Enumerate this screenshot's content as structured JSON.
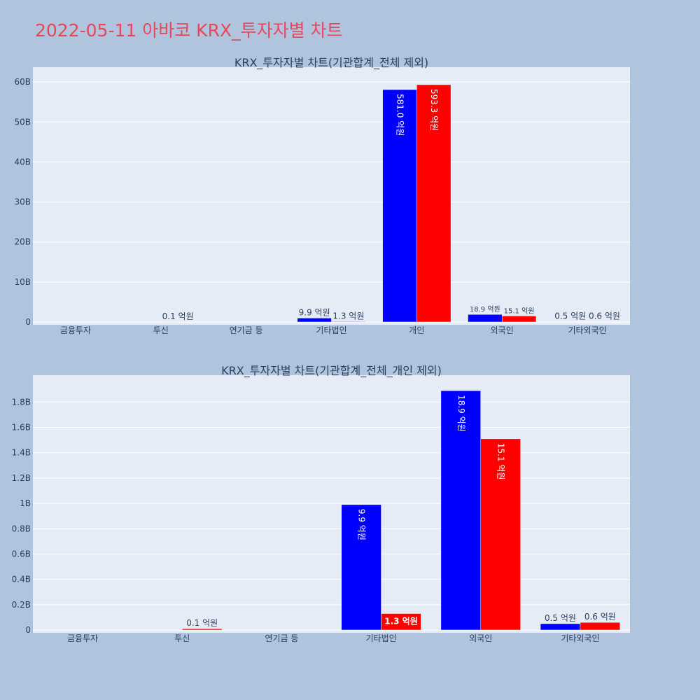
{
  "page": {
    "title": "2022-05-11 아바코 KRX_투자자별 차트"
  },
  "chart_data": [
    {
      "type": "bar",
      "title": "KRX_투자자별 차트(기관합계_전체 제외)",
      "categories": [
        "금융투자",
        "투신",
        "연기금 등",
        "기타법인",
        "개인",
        "외국인",
        "기타외국인"
      ],
      "series": [
        {
          "color": "#0000ff",
          "values": [
            0,
            0,
            0,
            0.99,
            58.1,
            1.89,
            0.05
          ],
          "labels": [
            "",
            "",
            "",
            "9.9 억원",
            "581.0 억원",
            "18.9 억원",
            "0.5 억원"
          ]
        },
        {
          "color": "#ff0000",
          "values": [
            0,
            0.01,
            0,
            0.13,
            59.33,
            1.51,
            0.06
          ],
          "labels": [
            "",
            "0.1 억원",
            "",
            "1.3 억원",
            "593.3 억원",
            "15.1 억원",
            "0.6 억원"
          ]
        }
      ],
      "ylim": [
        0,
        63
      ],
      "yticks": [
        0,
        10,
        20,
        30,
        40,
        50,
        60
      ],
      "ytick_labels": [
        "0",
        "10B",
        "20B",
        "30B",
        "40B",
        "50B",
        "60B"
      ],
      "grid": true,
      "legend": "none"
    },
    {
      "type": "bar",
      "title": "KRX_투자자별 차트(기관합계_전체_개인 제외)",
      "categories": [
        "금융투자",
        "투신",
        "연기금 등",
        "기타법인",
        "외국인",
        "기타외국인"
      ],
      "series": [
        {
          "color": "#0000ff",
          "values": [
            0,
            0,
            0,
            0.99,
            1.89,
            0.05
          ],
          "labels": [
            "",
            "",
            "",
            "9.9 억원",
            "18.9 억원",
            "0.5 억원"
          ]
        },
        {
          "color": "#ff0000",
          "values": [
            0,
            0.01,
            0,
            0.13,
            1.51,
            0.06
          ],
          "labels": [
            "",
            "0.1 억원",
            "",
            "1.3 억원",
            "15.1 억원",
            "0.6 억원"
          ]
        }
      ],
      "ylim": [
        0,
        1.99
      ],
      "yticks": [
        0,
        0.2,
        0.4,
        0.6,
        0.8,
        1,
        1.2,
        1.4,
        1.6,
        1.8
      ],
      "ytick_labels": [
        "0",
        "0.2B",
        "0.4B",
        "0.6B",
        "0.8B",
        "1B",
        "1.2B",
        "1.4B",
        "1.6B",
        "1.8B"
      ],
      "grid": true,
      "legend": "none"
    }
  ]
}
